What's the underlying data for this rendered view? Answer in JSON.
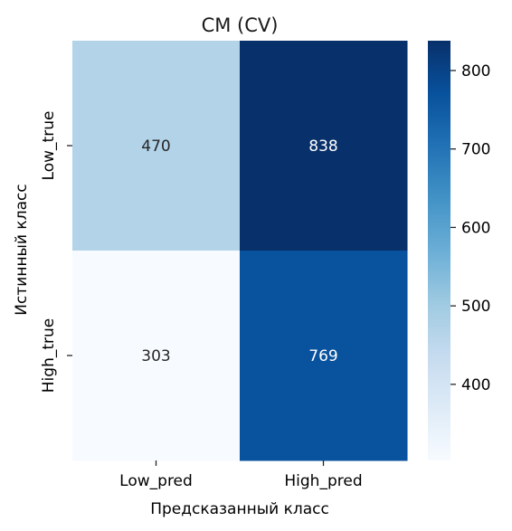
{
  "chart_data": {
    "type": "heatmap",
    "title": "CM (CV)",
    "xlabel": "Предсказанный класс",
    "ylabel": "Истинный класс",
    "x_categories": [
      "Low_pred",
      "High_pred"
    ],
    "y_categories": [
      "Low_true",
      "High_true"
    ],
    "values": [
      [
        470,
        838
      ],
      [
        303,
        769
      ]
    ],
    "colormap": "Blues",
    "colorbar": {
      "min": 303,
      "max": 838,
      "ticks": [
        400,
        500,
        600,
        700,
        800
      ]
    },
    "cell_label_colors": {
      "light": "#262626",
      "dark": "#ffffff"
    }
  }
}
